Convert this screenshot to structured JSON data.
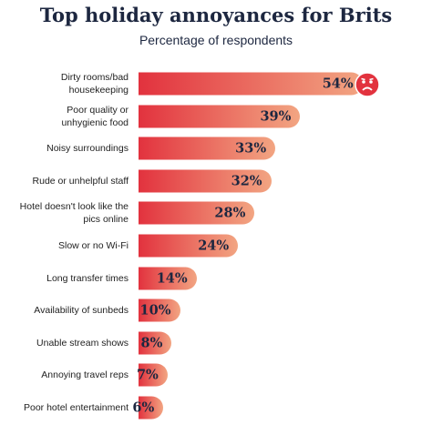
{
  "chart_data": {
    "type": "bar",
    "orientation": "horizontal",
    "title": "Top holiday annoyances for Brits",
    "subtitle": "Percentage of respondents",
    "categories": [
      "Dirty rooms/bad housekeeping",
      "Poor quality or unhygienic food",
      "Noisy surroundings",
      "Rude or unhelpful staff",
      "Hotel doesn't look like the pics online",
      "Slow or no Wi-Fi",
      "Long transfer times",
      "Availability of sunbeds",
      "Unable stream shows",
      "Annoying travel reps",
      "Poor hotel entertainment"
    ],
    "values": [
      54,
      39,
      33,
      32,
      28,
      24,
      14,
      10,
      8,
      7,
      6
    ],
    "value_labels": [
      "54%",
      "39%",
      "33%",
      "32%",
      "28%",
      "24%",
      "14%",
      "10%",
      "8%",
      "7%",
      "6%"
    ],
    "colors": [
      "#e2323e",
      "#f2a582"
    ]
  }
}
